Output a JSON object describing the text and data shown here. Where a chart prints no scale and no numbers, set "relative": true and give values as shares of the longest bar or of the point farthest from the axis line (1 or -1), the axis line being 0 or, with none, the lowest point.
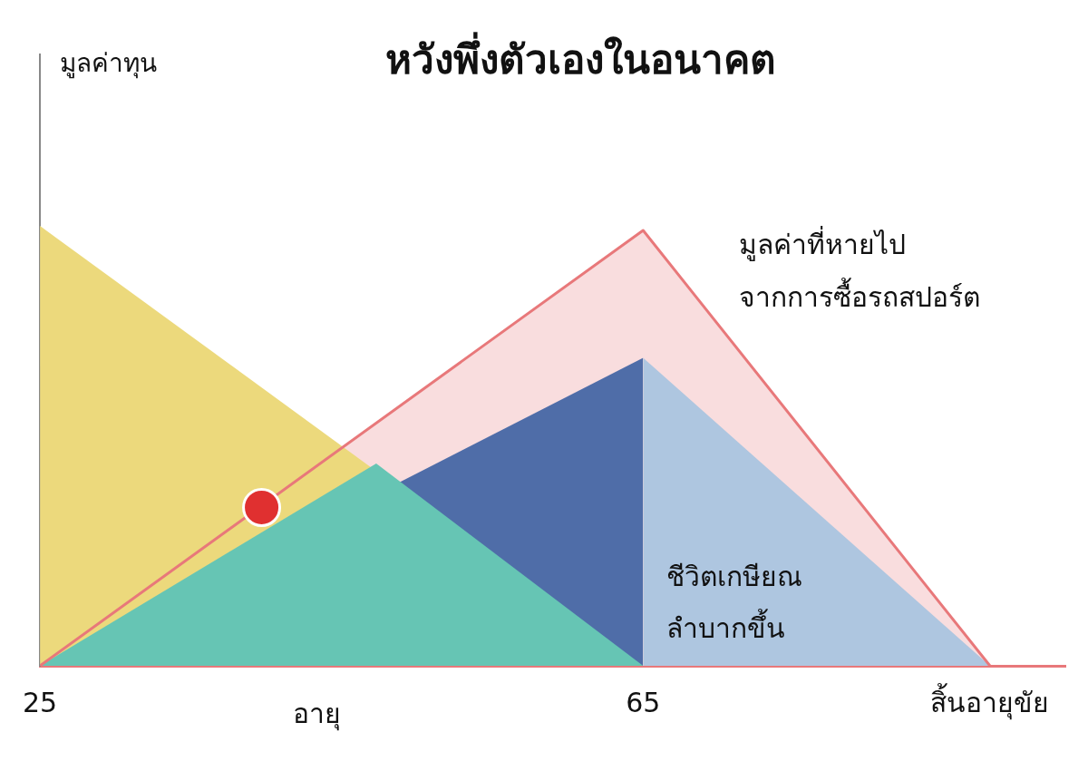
{
  "chart_data": {
    "type": "area",
    "title": "หวังพึ่งตัวเองในอนาคต",
    "xlabel": "อายุ",
    "relative": true,
    "xlim": [
      25,
      93
    ],
    "xticks": [
      25,
      65,
      {
        "value": 88,
        "label": "สิ้นอายุขัย"
      }
    ],
    "series": [
      {
        "color": "#e8787a",
        "line_style": "solid",
        "x": [
          25,
          65,
          88
        ],
        "values": [
          0,
          0.99,
          0
        ]
      },
      {
        "color": "#ecd97c",
        "x": [
          25,
          65
        ],
        "values": [
          1,
          0
        ]
      },
      {
        "color": "#4f6da8",
        "x": [
          25,
          65,
          65
        ],
        "values": [
          0,
          0.7,
          0
        ]
      },
      {
        "color": "#aec6e0",
        "x": [
          65,
          65,
          88
        ],
        "values": [
          0,
          0.7,
          0
        ]
      },
      {
        "color": "#66c5b4",
        "x": [
          25,
          47.3,
          65
        ],
        "values": [
          0,
          0.46,
          0
        ]
      },
      {
        "type": "scatter",
        "color": "#e03030",
        "marker": "circle",
        "x": [
          39.7
        ],
        "values": [
          0.36
        ]
      }
    ],
    "annotations": [
      "มูลค่าทุน",
      "มูลค่าที่หายไป",
      "จากการซื้อรถสปอร์ต",
      "ชีวิตเกษียณ",
      "ลำบากขึ้น"
    ],
    "grid": false,
    "legend": false
  }
}
